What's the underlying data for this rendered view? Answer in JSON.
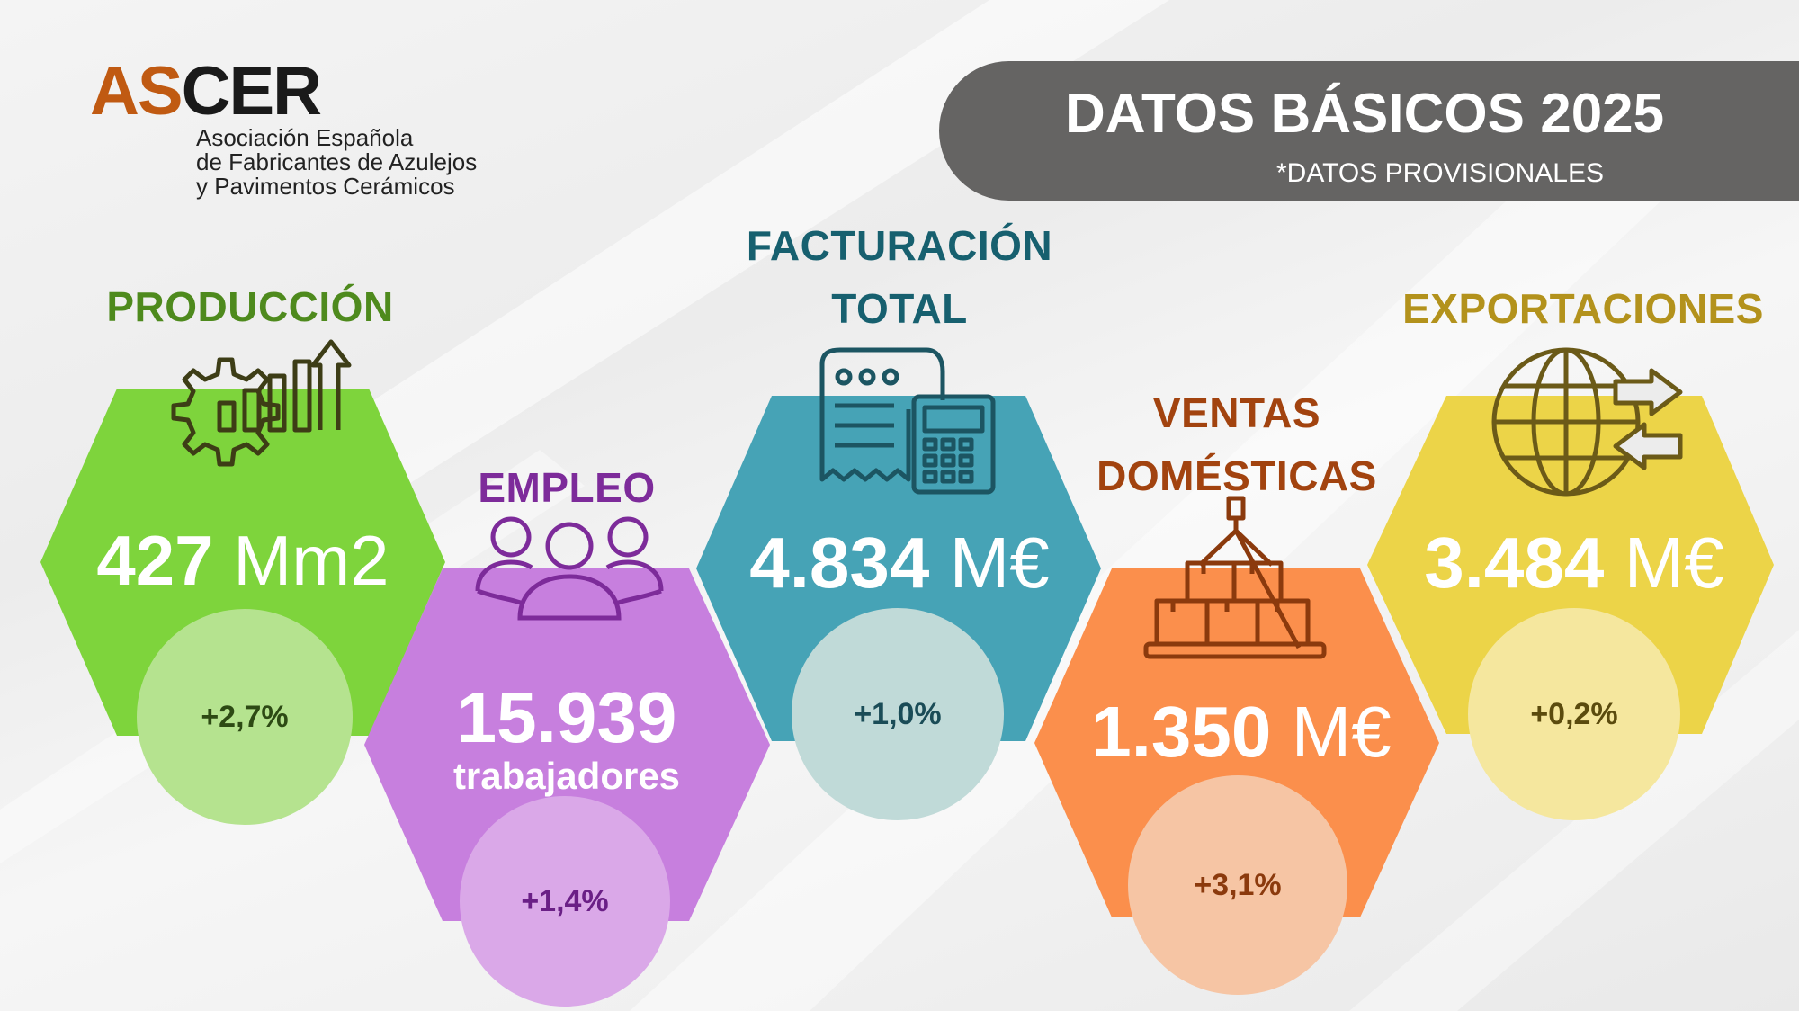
{
  "logo": {
    "part1": "AS",
    "part2": "CER",
    "subtitle_lines": [
      "Asociación Española",
      "de Fabricantes de Azulejos",
      "y Pavimentos Cerámicos"
    ]
  },
  "banner": {
    "title": "DATOS BÁSICOS 2025",
    "subtitle": "*DATOS PROVISIONALES"
  },
  "stats": {
    "produccion": {
      "label": "PRODUCCIÓN",
      "value": "427",
      "unit": "Mm2",
      "change": "+2,7%",
      "icon": "gear-chart-icon",
      "colors": {
        "hexagon": "#7ed43c",
        "circle": "#b5e38f",
        "label": "#4e8a1d",
        "change": "#2d4a14",
        "icon": "#3d3d16"
      }
    },
    "empleo": {
      "label": "EMPLEO",
      "value": "15.939",
      "unit": "trabajadores",
      "change": "+1,4%",
      "icon": "people-group-icon",
      "colors": {
        "hexagon": "#c77fde",
        "circle": "#daa8e8",
        "label": "#7d2b9a",
        "change": "#6a1f86",
        "icon": "#7d2b9a"
      }
    },
    "facturacion": {
      "label_lines": [
        "FACTURACIÓN",
        "TOTAL"
      ],
      "value": "4.834",
      "unit": "M€",
      "change": "+1,0%",
      "icon": "receipt-calculator-icon",
      "colors": {
        "hexagon": "#46a3b6",
        "circle": "#c0dad8",
        "label": "#17606f",
        "change": "#1a4c57",
        "icon": "#1c5562"
      }
    },
    "ventas": {
      "label_lines": [
        "VENTAS",
        "DOMÉSTICAS"
      ],
      "value": "1.350",
      "unit": "M€",
      "change": "+3,1%",
      "icon": "boxes-crane-icon",
      "colors": {
        "hexagon": "#fb8f4c",
        "circle": "#f6c5a4",
        "label": "#a2430f",
        "change": "#8b3a0d",
        "icon": "#8b3a0d"
      }
    },
    "exportaciones": {
      "label": "EXPORTACIONES",
      "value": "3.484",
      "unit": "M€",
      "change": "+0,2%",
      "icon": "globe-arrows-icon",
      "colors": {
        "hexagon": "#ecd448",
        "circle": "#f5e79e",
        "label": "#b3921c",
        "change": "#5b4b0e",
        "icon": "#6b5a18"
      }
    }
  }
}
